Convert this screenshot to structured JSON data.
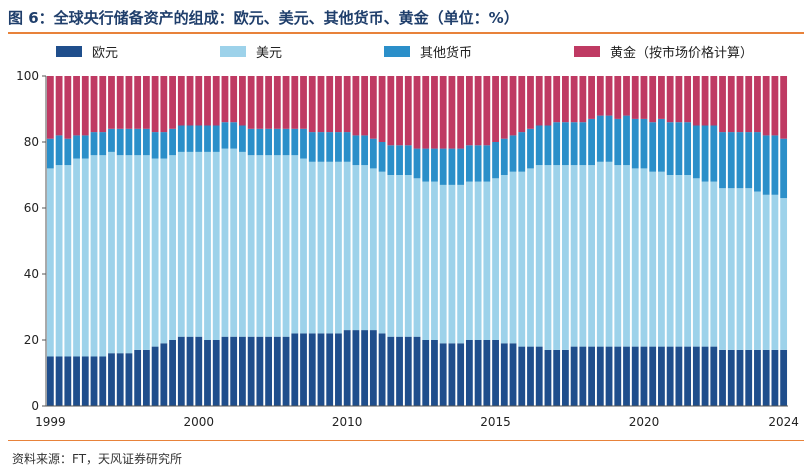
{
  "title": "图 6：全球央行储备资产的组成：欧元、美元、其他货币、黄金（单位：%）",
  "source": "资料来源：FT，天风证券研究所",
  "chart_data": {
    "type": "bar",
    "stacked": true,
    "legend_position": "top",
    "ylim": [
      0,
      100
    ],
    "yticks": [
      "0",
      "20",
      "40",
      "60",
      "80",
      "100"
    ],
    "xtick_labels": [
      {
        "label": "1999",
        "index": 0
      },
      {
        "label": "2000",
        "index": 17
      },
      {
        "label": "2010",
        "index": 34
      },
      {
        "label": "2015",
        "index": 51
      },
      {
        "label": "2020",
        "index": 68
      },
      {
        "label": "2024",
        "index": 84
      }
    ],
    "series": [
      {
        "name": "欧元",
        "color": "#1f4e8c",
        "values": [
          15,
          15,
          15,
          15,
          15,
          15,
          15,
          16,
          16,
          16,
          17,
          17,
          18,
          19,
          20,
          21,
          21,
          21,
          20,
          20,
          21,
          21,
          21,
          21,
          21,
          21,
          21,
          21,
          22,
          22,
          22,
          22,
          22,
          22,
          23,
          23,
          23,
          23,
          22,
          21,
          21,
          21,
          21,
          20,
          20,
          19,
          19,
          19,
          20,
          20,
          20,
          20,
          19,
          19,
          18,
          18,
          18,
          17,
          17,
          17,
          18,
          18,
          18,
          18,
          18,
          18,
          18,
          18,
          18,
          18,
          18,
          18,
          18,
          18,
          18,
          18,
          18,
          17,
          17,
          17,
          17,
          17,
          17,
          17,
          17
        ]
      },
      {
        "name": "美元",
        "color": "#9dd2ea",
        "values": [
          57,
          58,
          58,
          60,
          60,
          61,
          61,
          61,
          60,
          60,
          59,
          59,
          57,
          56,
          56,
          56,
          56,
          56,
          57,
          57,
          57,
          57,
          56,
          55,
          55,
          55,
          55,
          55,
          54,
          53,
          52,
          52,
          52,
          52,
          51,
          50,
          50,
          49,
          49,
          49,
          49,
          49,
          48,
          48,
          48,
          48,
          48,
          48,
          48,
          48,
          48,
          49,
          51,
          52,
          53,
          54,
          55,
          56,
          56,
          56,
          55,
          55,
          55,
          56,
          56,
          55,
          55,
          54,
          54,
          53,
          53,
          52,
          52,
          52,
          51,
          50,
          50,
          49,
          49,
          49,
          49,
          48,
          47,
          47,
          46
        ]
      },
      {
        "name": "其他货币",
        "color": "#2b8fc9",
        "values": [
          9,
          9,
          8,
          7,
          7,
          7,
          7,
          7,
          8,
          8,
          8,
          8,
          8,
          8,
          8,
          8,
          8,
          8,
          8,
          8,
          8,
          8,
          8,
          8,
          8,
          8,
          8,
          8,
          8,
          9,
          9,
          9,
          9,
          9,
          9,
          9,
          9,
          9,
          9,
          9,
          9,
          9,
          9,
          10,
          10,
          11,
          11,
          11,
          11,
          11,
          11,
          11,
          11,
          11,
          12,
          12,
          12,
          12,
          13,
          13,
          13,
          13,
          14,
          14,
          14,
          14,
          15,
          15,
          15,
          15,
          16,
          16,
          16,
          16,
          16,
          17,
          17,
          17,
          17,
          17,
          17,
          18,
          18,
          18,
          18
        ]
      },
      {
        "name": "黄金（按市场价格计算）",
        "color": "#bf3a63",
        "values": [
          19,
          18,
          19,
          18,
          18,
          17,
          17,
          16,
          16,
          16,
          16,
          16,
          17,
          17,
          16,
          15,
          15,
          15,
          15,
          15,
          14,
          14,
          15,
          16,
          16,
          16,
          16,
          16,
          16,
          16,
          17,
          17,
          17,
          17,
          17,
          18,
          18,
          19,
          20,
          21,
          21,
          21,
          22,
          22,
          22,
          22,
          22,
          22,
          21,
          21,
          21,
          20,
          19,
          18,
          17,
          16,
          15,
          15,
          14,
          14,
          14,
          14,
          13,
          12,
          12,
          13,
          12,
          13,
          13,
          14,
          13,
          14,
          14,
          14,
          15,
          15,
          15,
          17,
          17,
          17,
          17,
          17,
          18,
          18,
          19
        ]
      }
    ]
  }
}
